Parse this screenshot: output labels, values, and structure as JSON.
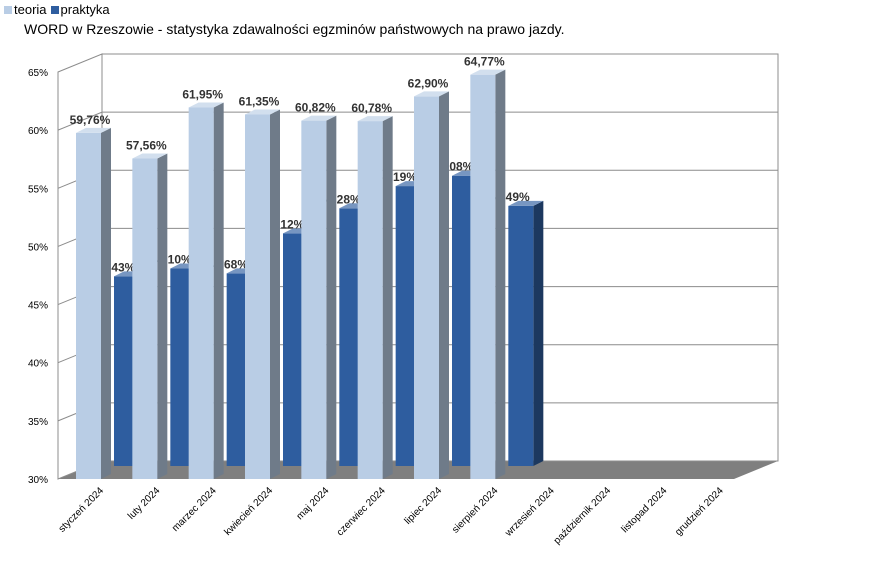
{
  "title": "WORD w Rzeszowie - statystyka zdawalności egzminów państwowych na prawo jazdy.",
  "colors": {
    "teoria": "#b9cde5",
    "praktyka": "#2e5d9f",
    "wall": "#ffffff",
    "floor": "#7f7f7f",
    "grid": "#8c8c8c"
  },
  "chart_data": {
    "type": "bar",
    "title": "WORD w Rzeszowie - statystyka zdawalności egzminów państwowych na prawo jazdy.",
    "xlabel": "",
    "ylabel": "",
    "ylim": [
      30,
      65
    ],
    "yticks": [
      "30%",
      "35%",
      "40%",
      "45%",
      "50%",
      "55%",
      "60%",
      "65%"
    ],
    "grid": true,
    "legend": "top-left",
    "categories": [
      "styczeń 2024",
      "luty 2024",
      "marzec 2024",
      "kwiecień 2024",
      "maj 2024",
      "czerwiec 2024",
      "lipiec 2024",
      "sierpień 2024",
      "wrzesień 2024",
      "październik 2024",
      "listopad 2024",
      "grudzień 2024"
    ],
    "series": [
      {
        "name": "teoria",
        "values": [
          59.76,
          57.56,
          61.95,
          61.35,
          60.82,
          60.78,
          62.9,
          64.77,
          null,
          null,
          null,
          null
        ],
        "labels": [
          "59,76%",
          "57,56%",
          "61,95%",
          "61,35%",
          "60,82%",
          "60,78%",
          "62,90%",
          "64,77%",
          "",
          "",
          "",
          ""
        ]
      },
      {
        "name": "praktyka",
        "values": [
          47.43,
          48.1,
          47.68,
          51.12,
          53.28,
          55.19,
          56.08,
          53.49,
          null,
          null,
          null,
          null
        ],
        "labels": [
          "47,43%",
          "48,10%",
          "47,68%",
          "51,12%",
          "53,28%",
          "55,19%",
          "56,08%",
          "53,49%",
          "",
          "",
          "",
          ""
        ]
      }
    ]
  }
}
